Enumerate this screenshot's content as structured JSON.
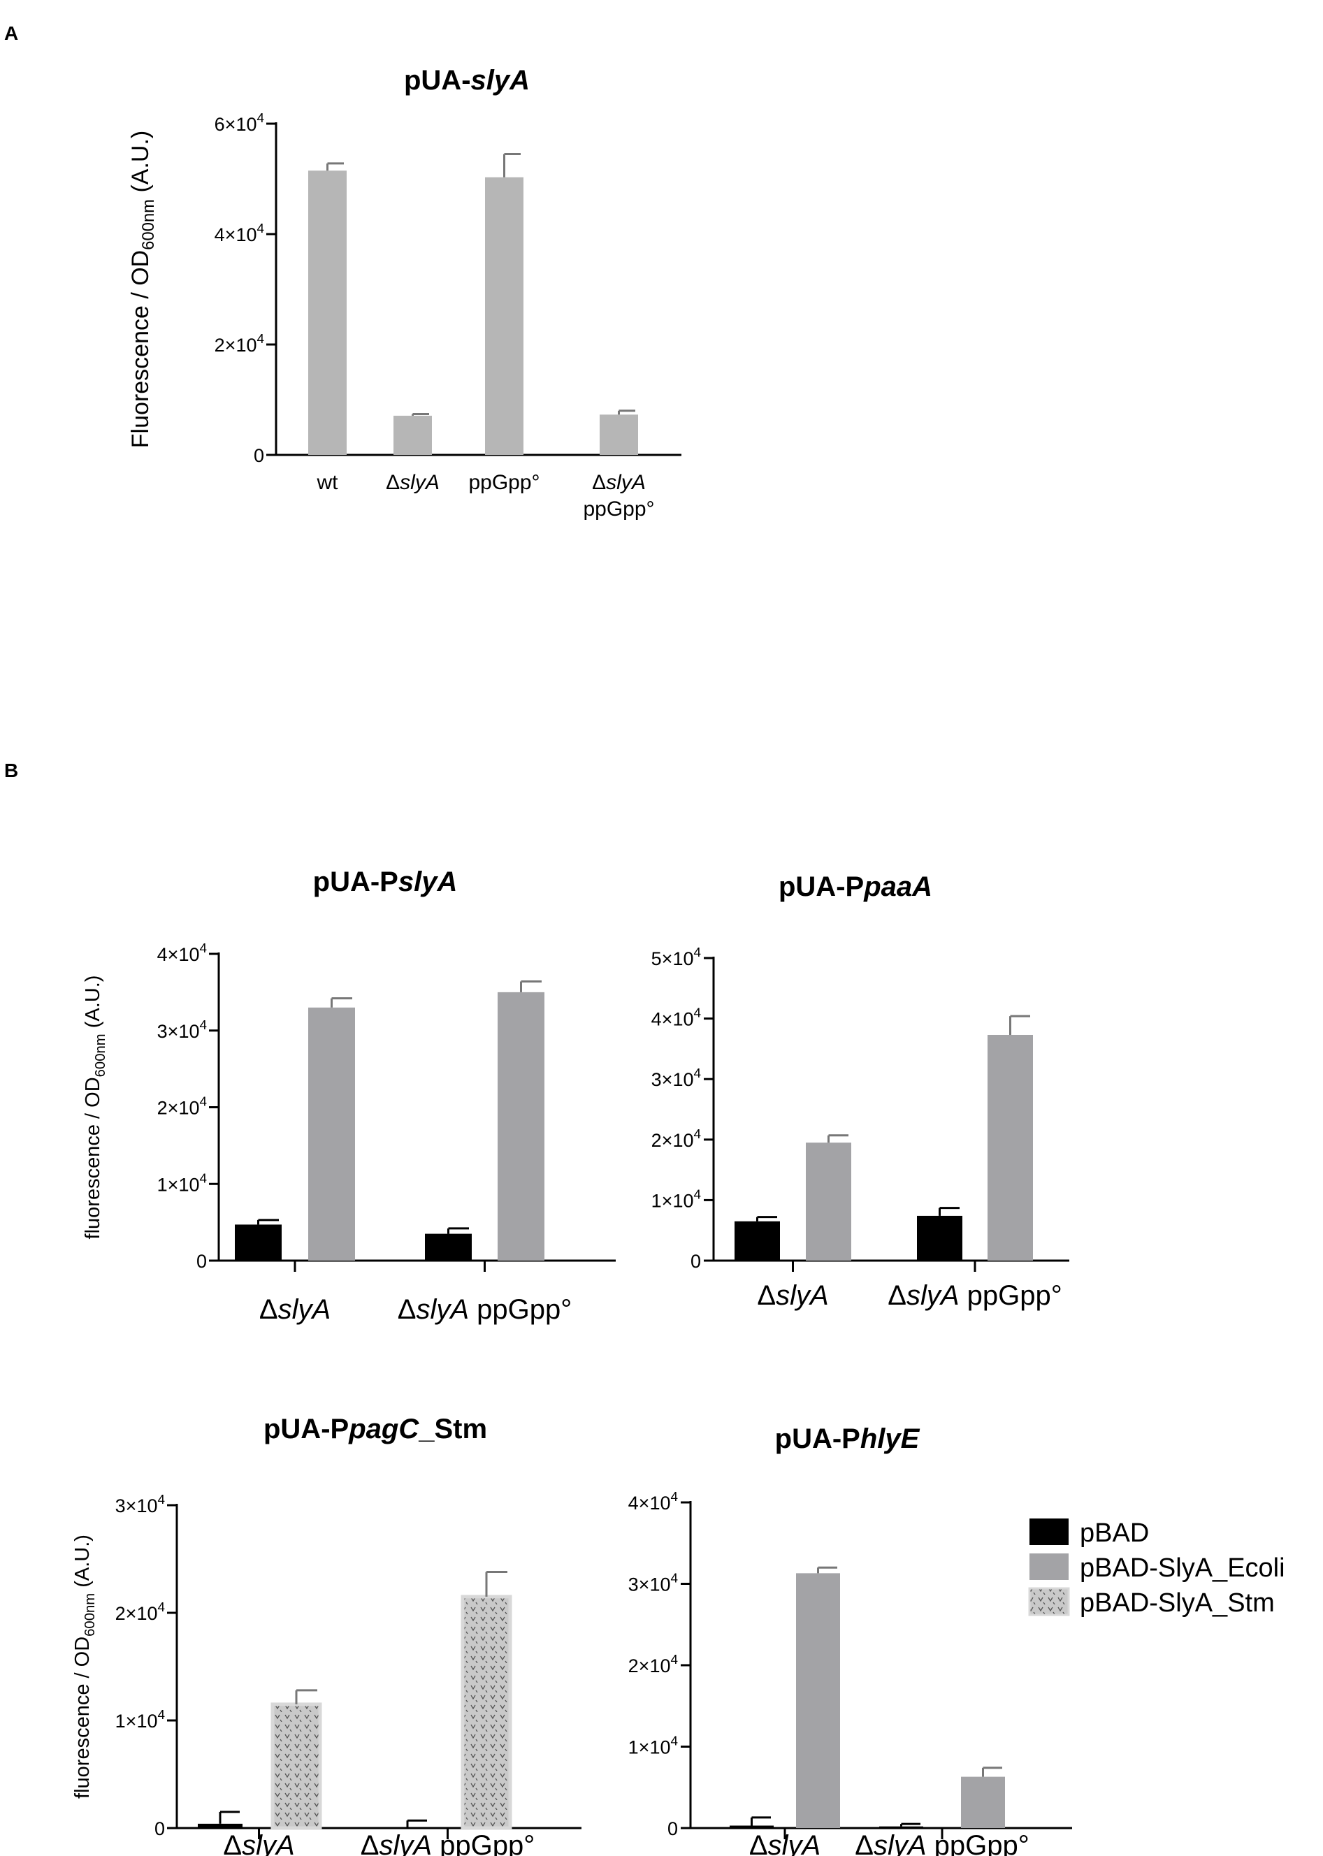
{
  "panels": {
    "a": "A",
    "b": "B"
  },
  "legend": {
    "pbad": "pBAD",
    "ecoli": "pBAD-SlyA_Ecoli",
    "stm": "pBAD-SlyA_Stm"
  },
  "colors": {
    "pbad": "#000000",
    "ecoli": "#a3a3a6",
    "stm": "#c9c9c9",
    "panelA": "#b6b6b6",
    "errorbar": "#777777"
  },
  "chart_data": [
    {
      "type": "bar",
      "title_parts": [
        "pUA-",
        "slyA"
      ],
      "ylabel_parts": [
        "Fluorescence / OD",
        "600nm",
        " (A.U.)"
      ],
      "categories": [
        [
          "wt"
        ],
        [
          "Δ",
          "slyA"
        ],
        [
          "ppGpp°"
        ],
        [
          "Δ",
          "slyA",
          "ppGpp°"
        ]
      ],
      "values": [
        51500,
        7100,
        50300,
        7300
      ],
      "errors": [
        1300,
        300,
        4200,
        700
      ],
      "yticks": [
        "0",
        "2×10",
        "4×10",
        "6×10"
      ],
      "ytick_exp": [
        "",
        "4",
        "4",
        "4"
      ],
      "ylim": [
        0,
        60000
      ]
    },
    {
      "type": "bar",
      "title_parts": [
        "pUA-P",
        "slyA",
        ""
      ],
      "ylabel_parts": [
        "fluorescence / OD",
        "600nm",
        " (A.U.)"
      ],
      "categories": [
        [
          "Δ",
          "slyA"
        ],
        [
          "Δ",
          "slyA",
          " ppGpp°"
        ]
      ],
      "series": [
        {
          "name": "pBAD",
          "values": [
            4700,
            3500
          ],
          "errors": [
            600,
            700
          ]
        },
        {
          "name": "pBAD-SlyA_Ecoli",
          "values": [
            33000,
            35000
          ],
          "errors": [
            1200,
            1400
          ]
        }
      ],
      "yticks": [
        "0",
        "1×10",
        "2×10",
        "3×10",
        "4×10"
      ],
      "ytick_exp": [
        "",
        "4",
        "4",
        "4",
        "4"
      ],
      "ylim": [
        0,
        40000
      ]
    },
    {
      "type": "bar",
      "title_parts": [
        "pUA-P",
        "paaA",
        ""
      ],
      "categories": [
        [
          "Δ",
          "slyA"
        ],
        [
          "Δ",
          "slyA",
          " ppGpp°"
        ]
      ],
      "series": [
        {
          "name": "pBAD",
          "values": [
            6500,
            7400
          ],
          "errors": [
            700,
            1300
          ]
        },
        {
          "name": "pBAD-SlyA_Ecoli",
          "values": [
            19500,
            37300
          ],
          "errors": [
            1200,
            3100
          ]
        }
      ],
      "yticks": [
        "0",
        "1×10",
        "2×10",
        "3×10",
        "4×10",
        "5×10"
      ],
      "ytick_exp": [
        "",
        "4",
        "4",
        "4",
        "4",
        "4"
      ],
      "ylim": [
        0,
        50000
      ]
    },
    {
      "type": "bar",
      "title_parts": [
        "pUA-P",
        "pagC",
        "_Stm"
      ],
      "ylabel_parts": [
        "fluorescence / OD",
        "600nm",
        " (A.U.)"
      ],
      "categories": [
        [
          "Δ",
          "slyA"
        ],
        [
          "Δ",
          "slyA",
          " ppGpp°"
        ]
      ],
      "series": [
        {
          "name": "pBAD",
          "values": [
            400,
            0
          ],
          "errors": [
            1100,
            700
          ]
        },
        {
          "name": "pBAD-SlyA_Stm",
          "values": [
            11500,
            21500
          ],
          "errors": [
            1300,
            2300
          ]
        }
      ],
      "yticks": [
        "0",
        "1×10",
        "2×10",
        "3×10"
      ],
      "ytick_exp": [
        "",
        "4",
        "4",
        "4"
      ],
      "ylim": [
        0,
        30000
      ]
    },
    {
      "type": "bar",
      "title_parts": [
        "pUA-P",
        "hlyE",
        ""
      ],
      "categories": [
        [
          "Δ",
          "slyA"
        ],
        [
          "Δ",
          "slyA",
          " ppGpp°"
        ]
      ],
      "series": [
        {
          "name": "pBAD",
          "values": [
            300,
            200
          ],
          "errors": [
            1000,
            300
          ]
        },
        {
          "name": "pBAD-SlyA_Ecoli",
          "values": [
            31300,
            6300
          ],
          "errors": [
            700,
            1100
          ]
        }
      ],
      "yticks": [
        "0",
        "1×10",
        "2×10",
        "3×10",
        "4×10"
      ],
      "ytick_exp": [
        "",
        "4",
        "4",
        "4",
        "4"
      ],
      "ylim": [
        0,
        40000
      ]
    }
  ]
}
